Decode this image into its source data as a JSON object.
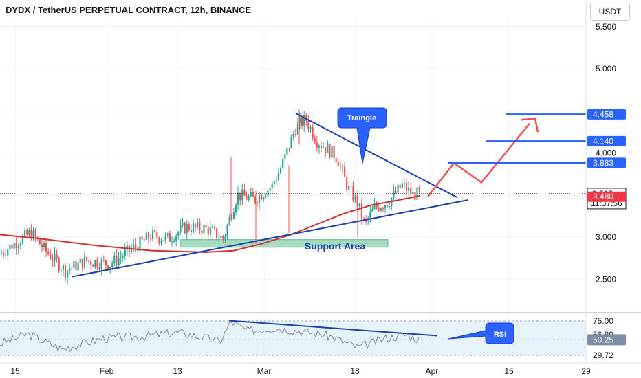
{
  "header": {
    "title": "DYDX / TetherUS PERPETUAL CONTRACT, 12h, BINANCE",
    "currency_button": "USDT"
  },
  "colors": {
    "up": "#26a69a",
    "down": "#ef5350",
    "ma": "#d32f2f",
    "trendline": "#1e40af",
    "arrow": "#ef5350",
    "support_fill": "#8fd3b0",
    "support_text": "#1e40af",
    "tag_blue": "#2962ff",
    "tag_red": "#f23645",
    "rsi_line": "#7e8899",
    "rsi_band": "#d6ecf5"
  },
  "chart_data": [
    {
      "type": "candlestick",
      "title": "DYDX / TetherUS PERPETUAL CONTRACT, 12h, BINANCE",
      "x_tick_labels": [
        "15",
        "Feb",
        "13",
        "Mar",
        "18",
        "Apr",
        "15",
        "29"
      ],
      "y_ticks": [
        5.5,
        5.0,
        4.0,
        3.0,
        2.5
      ],
      "y_tick_labels": [
        "5.500",
        "5.000",
        "4.000",
        "3.000",
        "2.500"
      ],
      "ylim": [
        2.2,
        5.8
      ],
      "price_labels": [
        {
          "value": 4.458,
          "text": "4.458",
          "kind": "level"
        },
        {
          "value": 4.14,
          "text": "4.140",
          "kind": "level"
        },
        {
          "value": 3.883,
          "text": "3.883",
          "kind": "level"
        },
        {
          "value": 3.515,
          "text": "3.515",
          "kind": "last"
        },
        {
          "value": 3.48,
          "text": "3.480",
          "kind": "ma"
        }
      ],
      "countdown": "11:37:56",
      "levels": [
        4.458,
        4.14,
        3.883
      ],
      "annotations": {
        "triangle_label": "Traingle",
        "support_label": "Support Area",
        "support_zone": [
          2.88,
          2.97
        ]
      }
    },
    {
      "type": "line",
      "title": "RSI",
      "y_tick_labels": [
        "75.00",
        "56.89",
        "50.25",
        "29.72"
      ],
      "current_value": 50.25,
      "label": "RSI"
    }
  ]
}
